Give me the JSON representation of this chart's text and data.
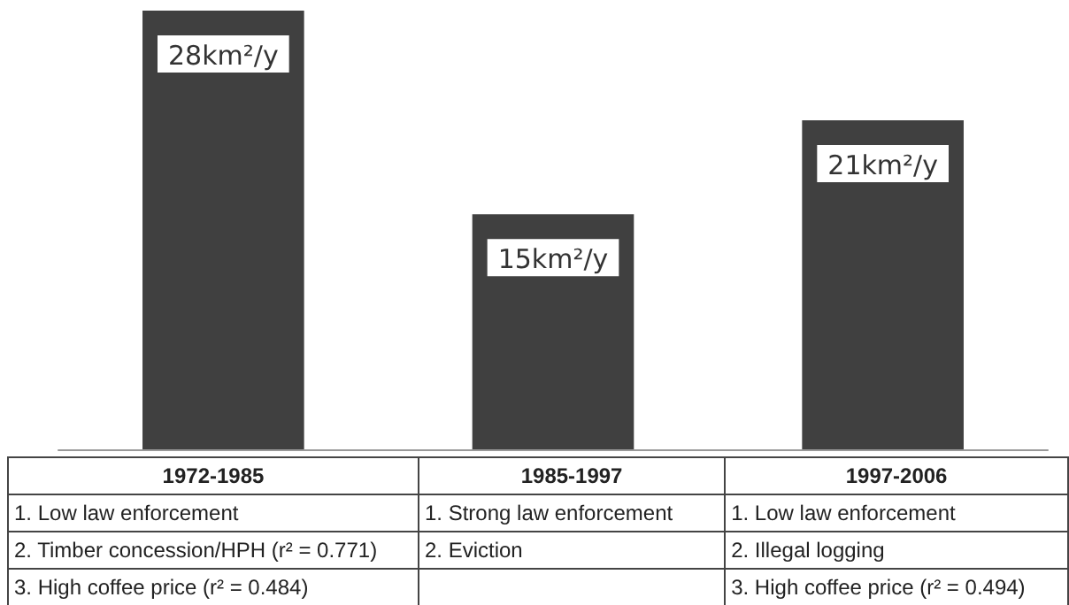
{
  "chart_data": {
    "type": "bar",
    "categories": [
      "1972-1985",
      "1985-1997",
      "1997-2006"
    ],
    "values": [
      28,
      15,
      21
    ],
    "color": "#404040",
    "value_labels": [
      "28km²/y",
      "15km²/y",
      "21km²/y"
    ],
    "annotations": [
      "1. Low law enforcement",
      "2. Timber concession/HPH (r² = 0.771)",
      "3. High coffee price (r² = 0.484)",
      "1. Strong law enforcement",
      "2. Eviction",
      "1. Low law enforcement",
      "2. Illegal logging",
      "3. High coffee price (r² = 0.494)"
    ]
  }
}
